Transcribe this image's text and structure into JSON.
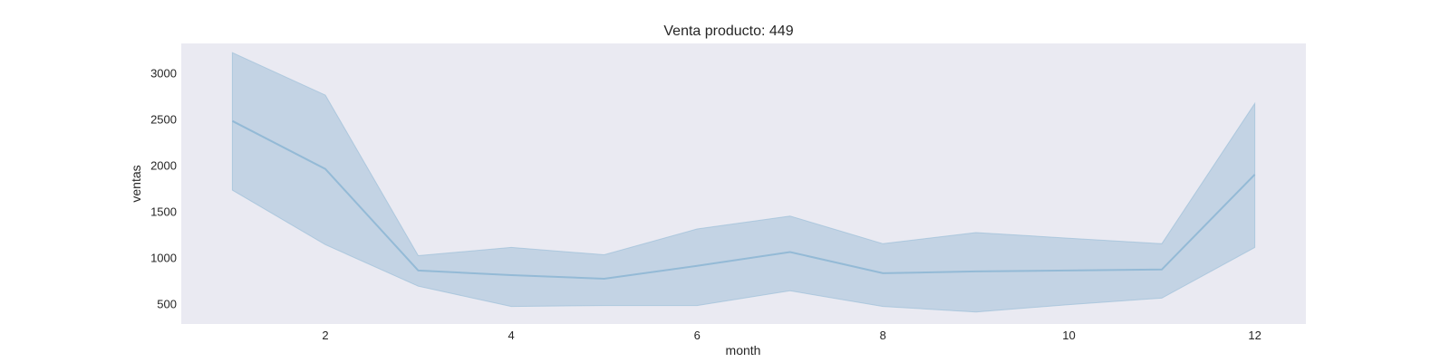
{
  "chart_data": {
    "type": "area",
    "title": "Venta producto: 449",
    "xlabel": "month",
    "ylabel": "ventas",
    "xlim": [
      0.45,
      12.55
    ],
    "ylim": [
      280,
      3320
    ],
    "xticks": [
      2,
      4,
      6,
      8,
      10,
      12
    ],
    "yticks": [
      500,
      1000,
      1500,
      2000,
      2500,
      3000
    ],
    "grid": false,
    "colors": {
      "plot_background": "#eaeaf2",
      "line": "#94bad6",
      "band": "#c3d3e4"
    },
    "series": [
      {
        "x": [
          1,
          2,
          3,
          4,
          5,
          6,
          7,
          8,
          9,
          10,
          11,
          12
        ],
        "mean": [
          2480,
          1960,
          860,
          810,
          770,
          910,
          1060,
          830,
          850,
          860,
          870,
          1900
        ],
        "upper": [
          3220,
          2760,
          1020,
          1110,
          1030,
          1310,
          1450,
          1150,
          1270,
          1210,
          1150,
          2670
        ],
        "lower": [
          1730,
          1140,
          690,
          470,
          480,
          480,
          640,
          470,
          410,
          490,
          560,
          1110
        ]
      }
    ]
  }
}
